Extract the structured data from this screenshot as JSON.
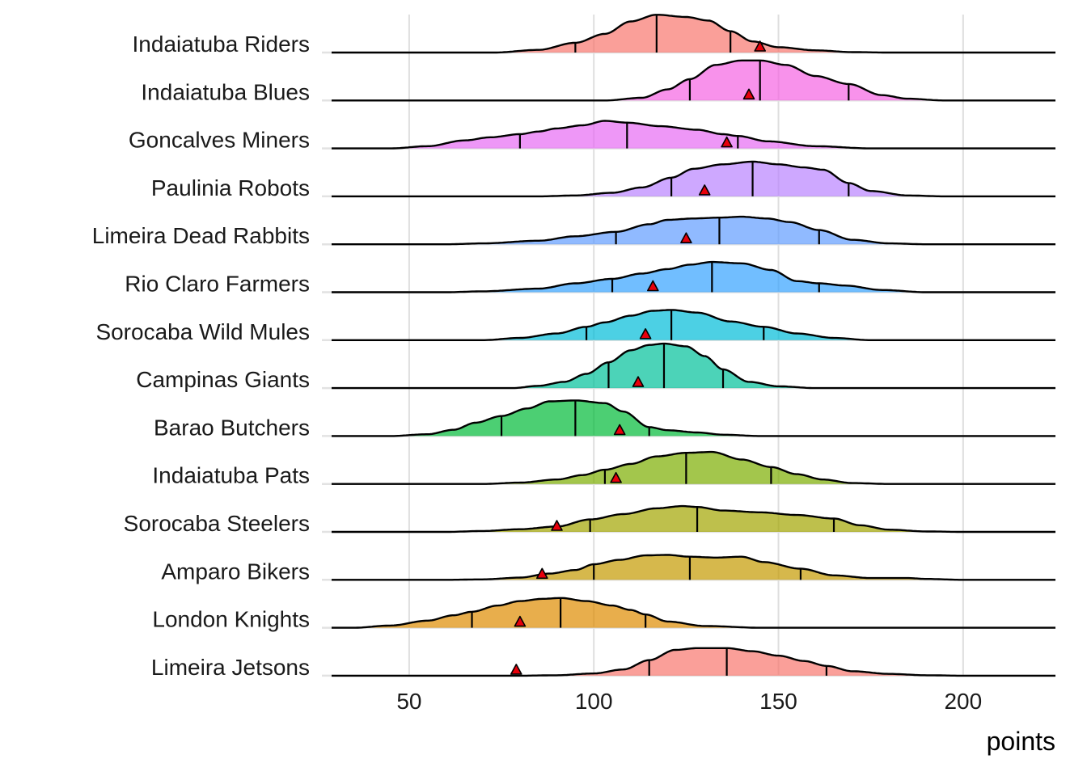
{
  "chart_data": {
    "type": "ridgeline",
    "xlabel": "points",
    "xlim": [
      29,
      225
    ],
    "xticks": [
      50,
      100,
      150,
      200
    ],
    "grid": true,
    "legend": "none",
    "marker_color": "#e8000b",
    "series": [
      {
        "name": "Indaiatuba Riders",
        "color": "#f8766d",
        "q1": 95,
        "median": 117,
        "q3": 137,
        "marker": 145,
        "density": [
          [
            73,
            0
          ],
          [
            85,
            0.06
          ],
          [
            95,
            0.22
          ],
          [
            103,
            0.42
          ],
          [
            110,
            0.7
          ],
          [
            117,
            0.85
          ],
          [
            125,
            0.8
          ],
          [
            131,
            0.72
          ],
          [
            137,
            0.48
          ],
          [
            143,
            0.25
          ],
          [
            150,
            0.12
          ],
          [
            160,
            0.05
          ],
          [
            170,
            0.01
          ],
          [
            180,
            0
          ]
        ]
      },
      {
        "name": "Indaiatuba Blues",
        "color": "#f564e3",
        "q1": 126,
        "median": 145,
        "q3": 169,
        "marker": 142,
        "density": [
          [
            103,
            0
          ],
          [
            113,
            0.06
          ],
          [
            120,
            0.25
          ],
          [
            126,
            0.48
          ],
          [
            133,
            0.8
          ],
          [
            140,
            0.9
          ],
          [
            145,
            0.9
          ],
          [
            152,
            0.8
          ],
          [
            160,
            0.55
          ],
          [
            169,
            0.37
          ],
          [
            178,
            0.12
          ],
          [
            185,
            0.04
          ],
          [
            195,
            0
          ]
        ]
      },
      {
        "name": "Goncalves Miners",
        "color": "#e76bf3",
        "q1": 80,
        "median": 109,
        "q3": 139,
        "marker": 136,
        "density": [
          [
            45,
            0
          ],
          [
            55,
            0.05
          ],
          [
            65,
            0.18
          ],
          [
            72,
            0.25
          ],
          [
            80,
            0.32
          ],
          [
            85,
            0.38
          ],
          [
            90,
            0.45
          ],
          [
            97,
            0.52
          ],
          [
            103,
            0.62
          ],
          [
            109,
            0.58
          ],
          [
            118,
            0.5
          ],
          [
            128,
            0.42
          ],
          [
            135,
            0.32
          ],
          [
            139,
            0.28
          ],
          [
            147,
            0.16
          ],
          [
            160,
            0.05
          ],
          [
            175,
            0
          ]
        ]
      },
      {
        "name": "Paulinia Robots",
        "color": "#b983ff",
        "q1": 121,
        "median": 143,
        "q3": 169,
        "marker": 130,
        "density": [
          [
            85,
            0
          ],
          [
            95,
            0.02
          ],
          [
            105,
            0.08
          ],
          [
            113,
            0.2
          ],
          [
            121,
            0.42
          ],
          [
            127,
            0.62
          ],
          [
            135,
            0.72
          ],
          [
            143,
            0.78
          ],
          [
            150,
            0.72
          ],
          [
            157,
            0.65
          ],
          [
            162,
            0.6
          ],
          [
            169,
            0.3
          ],
          [
            175,
            0.12
          ],
          [
            185,
            0.02
          ],
          [
            195,
            0
          ]
        ]
      },
      {
        "name": "Limeira Dead Rabbits",
        "color": "#619cff",
        "q1": 106,
        "median": 134,
        "q3": 161,
        "marker": 125,
        "density": [
          [
            60,
            0
          ],
          [
            70,
            0.02
          ],
          [
            85,
            0.08
          ],
          [
            95,
            0.18
          ],
          [
            106,
            0.28
          ],
          [
            115,
            0.45
          ],
          [
            120,
            0.55
          ],
          [
            127,
            0.58
          ],
          [
            134,
            0.6
          ],
          [
            140,
            0.62
          ],
          [
            147,
            0.58
          ],
          [
            153,
            0.5
          ],
          [
            161,
            0.32
          ],
          [
            170,
            0.1
          ],
          [
            180,
            0.02
          ],
          [
            190,
            0
          ]
        ]
      },
      {
        "name": "Rio Claro Farmers",
        "color": "#35a2ff",
        "q1": 105,
        "median": 132,
        "q3": 161,
        "marker": 116,
        "density": [
          [
            60,
            0
          ],
          [
            70,
            0.02
          ],
          [
            85,
            0.08
          ],
          [
            95,
            0.2
          ],
          [
            105,
            0.3
          ],
          [
            113,
            0.42
          ],
          [
            120,
            0.52
          ],
          [
            126,
            0.62
          ],
          [
            132,
            0.68
          ],
          [
            140,
            0.65
          ],
          [
            148,
            0.5
          ],
          [
            155,
            0.25
          ],
          [
            161,
            0.2
          ],
          [
            168,
            0.15
          ],
          [
            178,
            0.05
          ],
          [
            190,
            0
          ]
        ]
      },
      {
        "name": "Sorocaba Wild Mules",
        "color": "#00bcd8",
        "q1": 98,
        "median": 121,
        "q3": 146,
        "marker": 114,
        "density": [
          [
            70,
            0
          ],
          [
            80,
            0.05
          ],
          [
            90,
            0.15
          ],
          [
            98,
            0.3
          ],
          [
            103,
            0.4
          ],
          [
            110,
            0.55
          ],
          [
            116,
            0.66
          ],
          [
            121,
            0.68
          ],
          [
            128,
            0.62
          ],
          [
            137,
            0.42
          ],
          [
            146,
            0.3
          ],
          [
            155,
            0.15
          ],
          [
            165,
            0.05
          ],
          [
            175,
            0
          ]
        ]
      },
      {
        "name": "Campinas Giants",
        "color": "#00c19a",
        "q1": 104,
        "median": 119,
        "q3": 135,
        "marker": 112,
        "density": [
          [
            78,
            0
          ],
          [
            85,
            0.05
          ],
          [
            92,
            0.14
          ],
          [
            98,
            0.32
          ],
          [
            104,
            0.58
          ],
          [
            110,
            0.85
          ],
          [
            115,
            0.97
          ],
          [
            119,
            1.0
          ],
          [
            125,
            0.94
          ],
          [
            130,
            0.72
          ],
          [
            135,
            0.42
          ],
          [
            142,
            0.14
          ],
          [
            150,
            0.04
          ],
          [
            160,
            0
          ]
        ]
      },
      {
        "name": "Barao Butchers",
        "color": "#00ba38",
        "q1": 75,
        "median": 95,
        "q3": 115,
        "marker": 107,
        "density": [
          [
            45,
            0
          ],
          [
            55,
            0.04
          ],
          [
            62,
            0.14
          ],
          [
            68,
            0.3
          ],
          [
            75,
            0.45
          ],
          [
            82,
            0.62
          ],
          [
            88,
            0.78
          ],
          [
            95,
            0.8
          ],
          [
            103,
            0.74
          ],
          [
            108,
            0.55
          ],
          [
            115,
            0.2
          ],
          [
            120,
            0.13
          ],
          [
            128,
            0.08
          ],
          [
            135,
            0.03
          ],
          [
            145,
            0
          ]
        ]
      },
      {
        "name": "Indaiatuba Pats",
        "color": "#7cae00",
        "q1": 103,
        "median": 125,
        "q3": 148,
        "marker": 106,
        "density": [
          [
            70,
            0
          ],
          [
            80,
            0.03
          ],
          [
            90,
            0.1
          ],
          [
            97,
            0.2
          ],
          [
            103,
            0.32
          ],
          [
            110,
            0.45
          ],
          [
            117,
            0.62
          ],
          [
            125,
            0.7
          ],
          [
            132,
            0.72
          ],
          [
            140,
            0.55
          ],
          [
            148,
            0.38
          ],
          [
            155,
            0.22
          ],
          [
            162,
            0.1
          ],
          [
            170,
            0.02
          ],
          [
            180,
            0
          ]
        ]
      },
      {
        "name": "Sorocaba Steelers",
        "color": "#a3a500",
        "q1": 99,
        "median": 128,
        "q3": 165,
        "marker": 90,
        "density": [
          [
            60,
            0
          ],
          [
            70,
            0.02
          ],
          [
            80,
            0.06
          ],
          [
            90,
            0.12
          ],
          [
            99,
            0.28
          ],
          [
            108,
            0.4
          ],
          [
            117,
            0.53
          ],
          [
            124,
            0.58
          ],
          [
            128,
            0.56
          ],
          [
            135,
            0.48
          ],
          [
            145,
            0.44
          ],
          [
            155,
            0.38
          ],
          [
            165,
            0.3
          ],
          [
            172,
            0.15
          ],
          [
            180,
            0.05
          ],
          [
            190,
            0.01
          ],
          [
            200,
            0
          ]
        ]
      },
      {
        "name": "Amparo Bikers",
        "color": "#c49a00",
        "q1": 100,
        "median": 126,
        "q3": 156,
        "marker": 86,
        "density": [
          [
            60,
            0
          ],
          [
            70,
            0.01
          ],
          [
            80,
            0.05
          ],
          [
            88,
            0.14
          ],
          [
            95,
            0.22
          ],
          [
            100,
            0.35
          ],
          [
            107,
            0.45
          ],
          [
            114,
            0.55
          ],
          [
            120,
            0.56
          ],
          [
            126,
            0.52
          ],
          [
            133,
            0.5
          ],
          [
            140,
            0.52
          ],
          [
            146,
            0.4
          ],
          [
            156,
            0.25
          ],
          [
            165,
            0.1
          ],
          [
            175,
            0.04
          ],
          [
            185,
            0.04
          ],
          [
            190,
            0.02
          ],
          [
            200,
            0
          ]
        ]
      },
      {
        "name": "London Knights",
        "color": "#de8c00",
        "q1": 67,
        "median": 91,
        "q3": 114,
        "marker": 80,
        "density": [
          [
            35,
            0
          ],
          [
            45,
            0.05
          ],
          [
            55,
            0.16
          ],
          [
            62,
            0.28
          ],
          [
            67,
            0.36
          ],
          [
            74,
            0.5
          ],
          [
            80,
            0.6
          ],
          [
            86,
            0.65
          ],
          [
            91,
            0.67
          ],
          [
            98,
            0.6
          ],
          [
            105,
            0.5
          ],
          [
            110,
            0.4
          ],
          [
            114,
            0.3
          ],
          [
            120,
            0.14
          ],
          [
            130,
            0.04
          ],
          [
            145,
            0
          ]
        ]
      },
      {
        "name": "Limeira Jetsons",
        "color": "#f8766d",
        "q1": 115,
        "median": 136,
        "q3": 163,
        "marker": 79,
        "density": [
          [
            80,
            0
          ],
          [
            90,
            0.01
          ],
          [
            100,
            0.05
          ],
          [
            108,
            0.14
          ],
          [
            115,
            0.35
          ],
          [
            122,
            0.58
          ],
          [
            128,
            0.62
          ],
          [
            136,
            0.62
          ],
          [
            143,
            0.55
          ],
          [
            150,
            0.45
          ],
          [
            157,
            0.33
          ],
          [
            163,
            0.22
          ],
          [
            170,
            0.1
          ],
          [
            180,
            0.04
          ],
          [
            190,
            0.01
          ],
          [
            200,
            0
          ]
        ]
      }
    ]
  }
}
